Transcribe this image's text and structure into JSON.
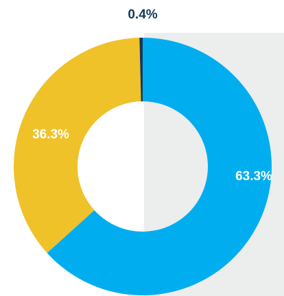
{
  "chart_data": {
    "type": "donut",
    "values": [
      63.3,
      36.3,
      0.4
    ],
    "value_labels": [
      "63.3%",
      "36.3%",
      "0.4%"
    ],
    "colors": [
      "#00aeef",
      "#efc22a",
      "#16395a"
    ]
  }
}
